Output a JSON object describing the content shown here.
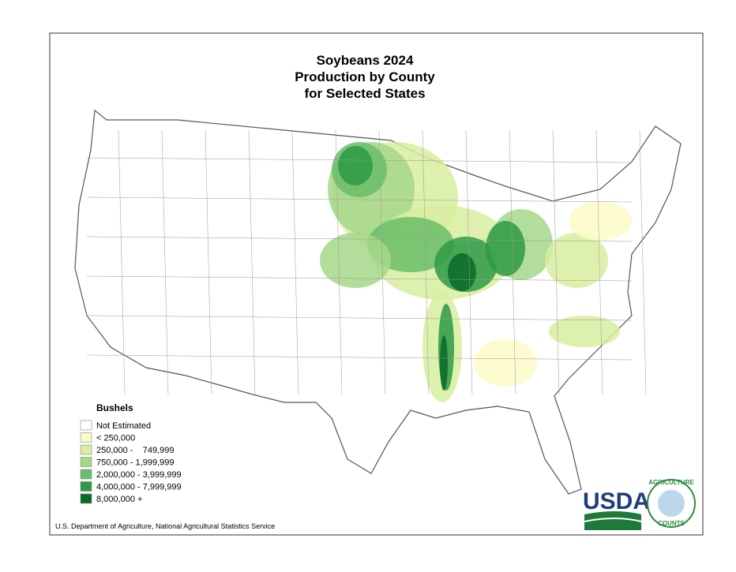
{
  "map": {
    "title": [
      "Soybeans 2024",
      "Production by County",
      "for Selected States"
    ],
    "legend": {
      "title": "Bushels",
      "items": [
        {
          "label": "Not Estimated",
          "color": "#ffffff"
        },
        {
          "label": "< 250,000",
          "color": "#fbfbc8"
        },
        {
          "label": "250,000 -    749,999",
          "color": "#d8eda0"
        },
        {
          "label": "750,000 - 1,999,999",
          "color": "#a6d78a"
        },
        {
          "label": "2,000,000 - 3,999,999",
          "color": "#6abd69"
        },
        {
          "label": "4,000,000 - 7,999,999",
          "color": "#2e9a45"
        },
        {
          "label": "8,000,000 +",
          "color": "#0a6a2a"
        }
      ]
    },
    "source": "U.S. Department of Agriculture, National Agricultural Statistics Service",
    "logo": {
      "text": "USDA",
      "badge": [
        "AGRICULTURE",
        "COUNTS"
      ]
    }
  }
}
